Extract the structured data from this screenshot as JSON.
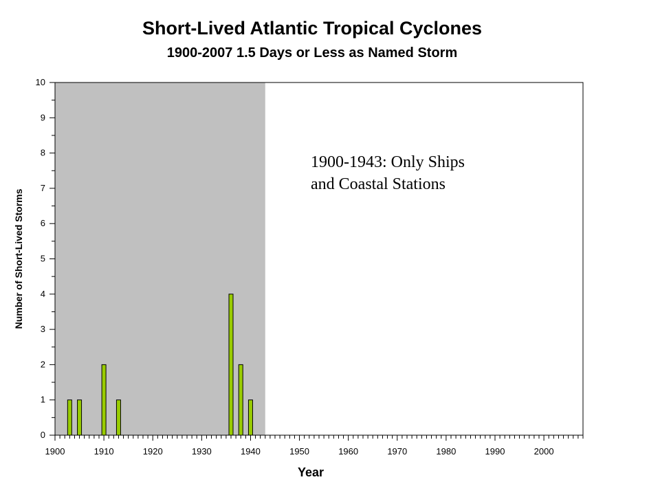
{
  "chart_data": {
    "type": "bar",
    "title": "Short-Lived Atlantic Tropical Cyclones",
    "subtitle": "1900-2007 1.5 Days or Less as Named Storm",
    "xlabel": "Year",
    "ylabel": "Number of Short-Lived Storms",
    "xlim": [
      1900,
      2008
    ],
    "ylim": [
      0,
      10
    ],
    "x_ticks": [
      1900,
      1910,
      1920,
      1930,
      1940,
      1950,
      1960,
      1970,
      1980,
      1990,
      2000
    ],
    "y_ticks": [
      0,
      1,
      2,
      3,
      4,
      5,
      6,
      7,
      8,
      9,
      10
    ],
    "x": [
      1903,
      1905,
      1910,
      1913,
      1936,
      1938,
      1940
    ],
    "values": [
      1,
      1,
      2,
      1,
      4,
      2,
      1
    ],
    "shaded_region": [
      1900,
      1943
    ],
    "annotation": "1900-1943: Only Ships and Coastal Stations",
    "bar_color": "#99cc00",
    "shade_color": "#c0c0c0",
    "grid": false,
    "legend": "none"
  }
}
